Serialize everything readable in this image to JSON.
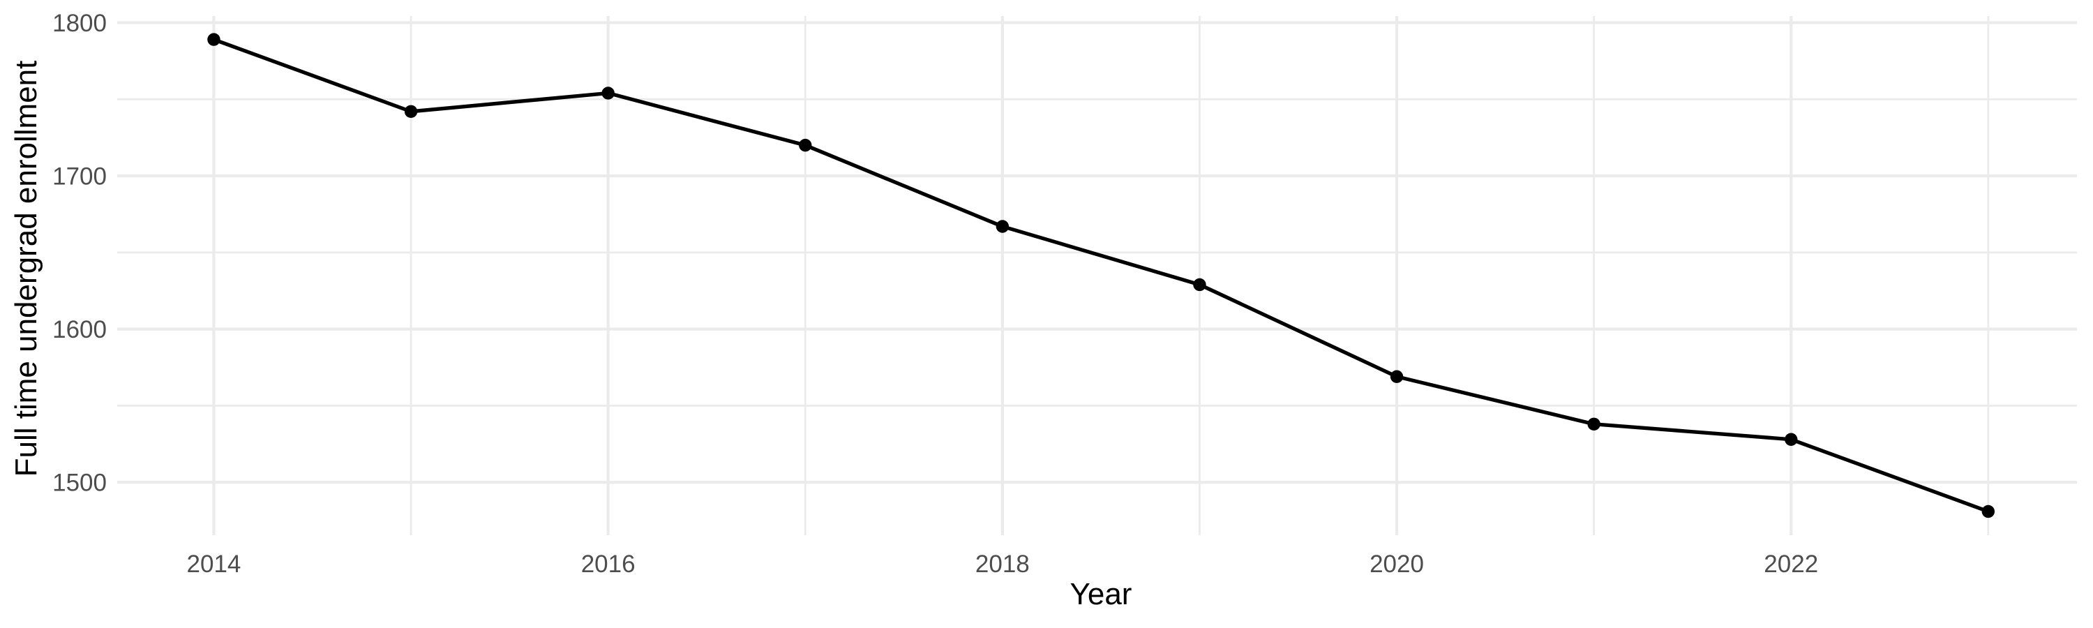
{
  "chart_data": {
    "type": "line",
    "title": "",
    "xlabel": "Year",
    "ylabel": "Full time undergrad enrollment",
    "series": [
      {
        "name": "Full time undergrad enrollment",
        "x": [
          2014,
          2015,
          2016,
          2017,
          2018,
          2019,
          2020,
          2021,
          2022,
          2023
        ],
        "values": [
          1789,
          1742,
          1754,
          1720,
          1667,
          1629,
          1569,
          1538,
          1528,
          1481
        ]
      }
    ],
    "x_tick_values": [
      2014,
      2016,
      2018,
      2020,
      2022
    ],
    "x_tick_labels": [
      "2014",
      "2016",
      "2018",
      "2020",
      "2022"
    ],
    "x_minor_tick_values": [
      2015,
      2017,
      2019,
      2021,
      2023
    ],
    "y_tick_values": [
      1500,
      1600,
      1700,
      1800
    ],
    "y_tick_labels": [
      "1500",
      "1600",
      "1700",
      "1800"
    ],
    "y_minor_tick_values": [
      1550,
      1650,
      1750
    ],
    "xlim": [
      2013.51,
      2023.45
    ],
    "ylim": [
      1465.5,
      1804.3
    ],
    "grid": "on",
    "legend": "none",
    "colors": {
      "line": "#000000",
      "point": "#000000",
      "grid_major": "#ebebeb",
      "grid_minor": "#ebebeb",
      "tick_text": "#4d4d4d",
      "axis_title_text": "#000000",
      "background": "#ffffff"
    }
  }
}
